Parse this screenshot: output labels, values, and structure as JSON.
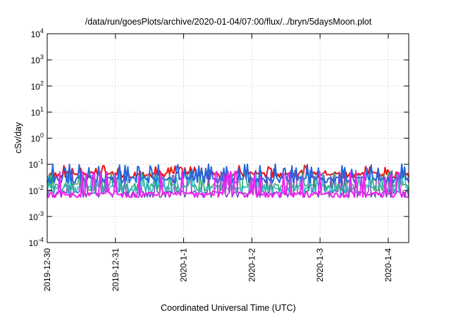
{
  "chart_data": {
    "type": "line",
    "title": "/data/run/goesPlots/archive/2020-01-04/07:00/flux/../bryn/5daysMoon.plot",
    "xlabel": "Coordinated Universal Time (UTC)",
    "ylabel": "cSv/day",
    "yscale": "log",
    "ylim": [
      0.0001,
      10000
    ],
    "xlim": [
      0,
      5.3
    ],
    "grid": true,
    "y_ticks": [
      {
        "value": 0.0001,
        "base": "10",
        "exp": "-4"
      },
      {
        "value": 0.001,
        "base": "10",
        "exp": "-3"
      },
      {
        "value": 0.01,
        "base": "10",
        "exp": "-2"
      },
      {
        "value": 0.1,
        "base": "10",
        "exp": "-1"
      },
      {
        "value": 1,
        "base": "10",
        "exp": "0"
      },
      {
        "value": 10,
        "base": "10",
        "exp": "1"
      },
      {
        "value": 100,
        "base": "10",
        "exp": "2"
      },
      {
        "value": 1000,
        "base": "10",
        "exp": "3"
      },
      {
        "value": 10000,
        "base": "10",
        "exp": "4"
      }
    ],
    "x_ticks": [
      {
        "value": 0,
        "label": "2019-12-30"
      },
      {
        "value": 1,
        "label": "2019-12-31"
      },
      {
        "value": 2,
        "label": "2020-1-1"
      },
      {
        "value": 3,
        "label": "2020-1-2"
      },
      {
        "value": 4,
        "label": "2020-1-3"
      },
      {
        "value": 5,
        "label": "2020-1-4"
      }
    ],
    "series": [
      {
        "color": "#ee1111",
        "base": 0.045,
        "spike": 0.075,
        "dip": 0.032,
        "width": 2
      },
      {
        "color": "#7744bb",
        "base": 0.0085,
        "spike": 0.05,
        "dip": 0.0055,
        "width": 1.5
      },
      {
        "color": "#22aa66",
        "base": 0.016,
        "spike": 0.045,
        "dip": 0.01,
        "width": 1.5
      },
      {
        "color": "#33bbcc",
        "base": 0.013,
        "spike": 0.04,
        "dip": 0.008,
        "width": 1.5
      },
      {
        "color": "#2266dd",
        "base": 0.028,
        "spike": 0.085,
        "dip": 0.02,
        "width": 2
      },
      {
        "color": "#ee22ee",
        "base": 0.0075,
        "spike": 0.045,
        "dip": 0.0055,
        "width": 2
      }
    ]
  }
}
